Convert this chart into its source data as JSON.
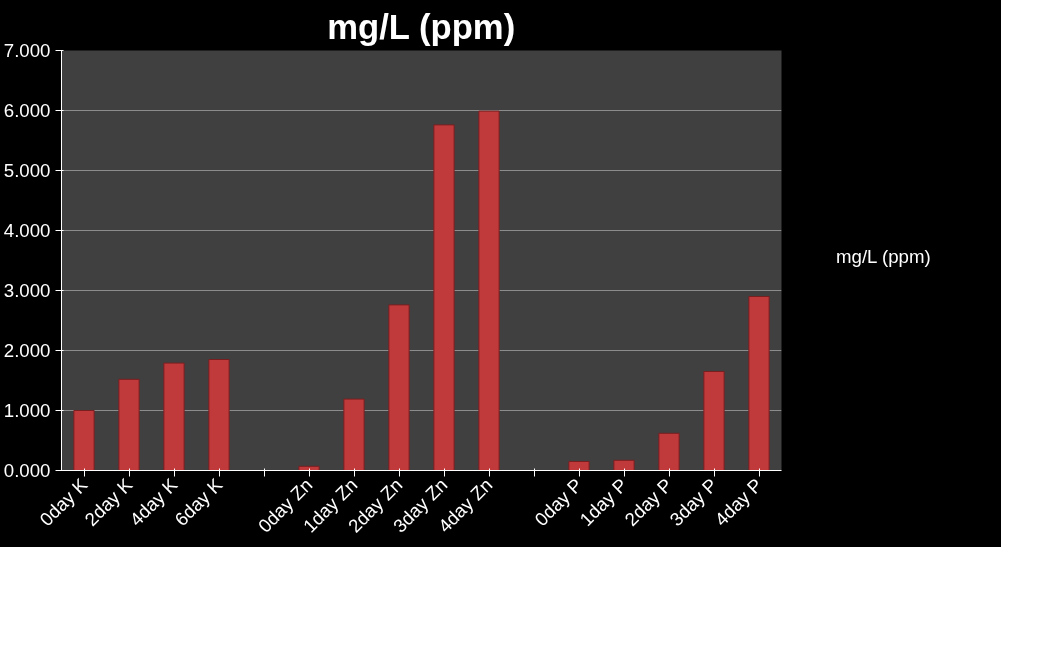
{
  "chart_data": {
    "type": "bar",
    "title": "mg/L (ppm)",
    "categories": [
      "0day K",
      "2day K",
      "4day K",
      "6day K",
      null,
      "0day Zn",
      "1day Zn",
      "2day Zn",
      "3day Zn",
      "4day Zn",
      null,
      "0day P",
      "1day P",
      "2day P",
      "3day P",
      "4day P"
    ],
    "series": [
      {
        "name": "mg/L (ppm)",
        "color": "#c0393b",
        "values": [
          1.0,
          1.52,
          1.79,
          1.85,
          null,
          0.07,
          1.19,
          2.76,
          5.76,
          5.99,
          null,
          0.15,
          0.17,
          0.62,
          1.65,
          2.9
        ]
      }
    ],
    "ylim": [
      0,
      7
    ],
    "yticks": [
      {
        "value": 0,
        "label": "0.000"
      },
      {
        "value": 1,
        "label": "1.000"
      },
      {
        "value": 2,
        "label": "2.000"
      },
      {
        "value": 3,
        "label": "3.000"
      },
      {
        "value": 4,
        "label": "4.000"
      },
      {
        "value": 5,
        "label": "5.000"
      },
      {
        "value": 6,
        "label": "6.000"
      },
      {
        "value": 7,
        "label": "7.000"
      }
    ],
    "grid": "y",
    "legend": "right"
  }
}
